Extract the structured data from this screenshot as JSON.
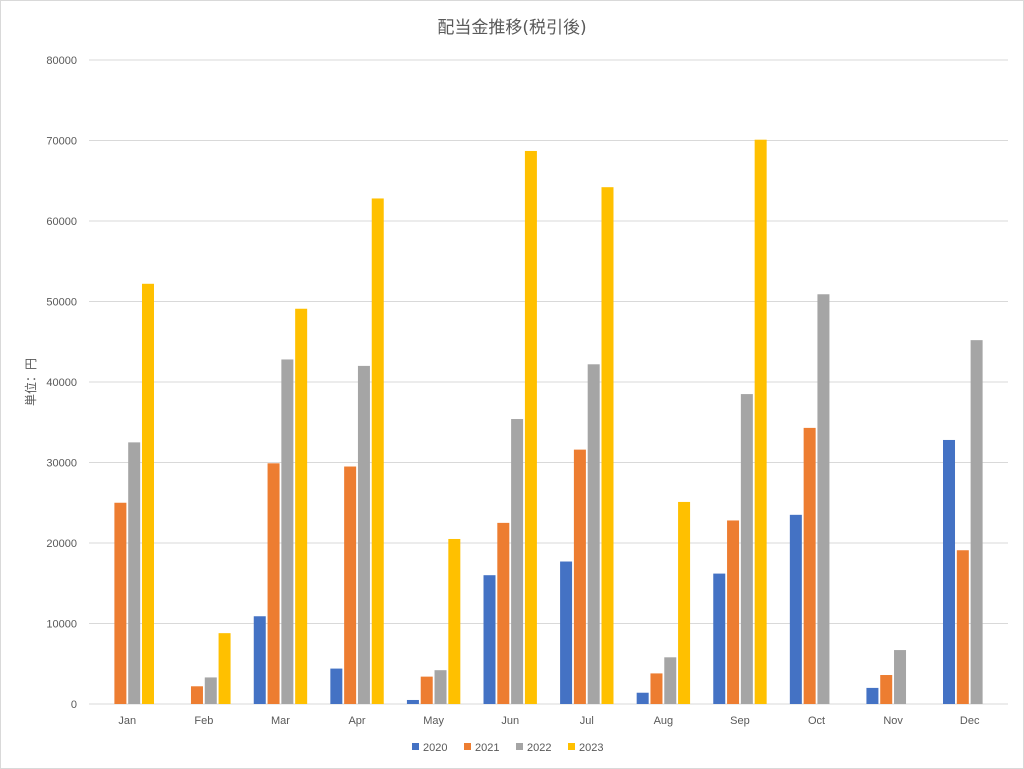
{
  "chart_data": {
    "type": "bar",
    "title": "配当金推移(税引後)",
    "ylabel": "単位：円",
    "xlabel": "",
    "ylim": [
      0,
      80000
    ],
    "yticks": [
      0,
      10000,
      20000,
      30000,
      40000,
      50000,
      60000,
      70000,
      80000
    ],
    "grid": true,
    "legend_position": "bottom",
    "categories": [
      "Jan",
      "Feb",
      "Mar",
      "Apr",
      "May",
      "Jun",
      "Jul",
      "Aug",
      "Sep",
      "Oct",
      "Nov",
      "Dec"
    ],
    "series": [
      {
        "name": "2020",
        "color": "#4472c4",
        "values": [
          0,
          0,
          10900,
          4400,
          500,
          16000,
          17700,
          1400,
          16200,
          23500,
          2000,
          32800
        ]
      },
      {
        "name": "2021",
        "color": "#ed7d31",
        "values": [
          25000,
          2200,
          29900,
          29500,
          3400,
          22500,
          31600,
          3800,
          22800,
          34300,
          3600,
          19100
        ]
      },
      {
        "name": "2022",
        "color": "#a5a5a5",
        "values": [
          32500,
          3300,
          42800,
          42000,
          4200,
          35400,
          42200,
          5800,
          38500,
          50900,
          6700,
          45200
        ]
      },
      {
        "name": "2023",
        "color": "#ffc000",
        "values": [
          52200,
          8800,
          49100,
          62800,
          20500,
          68700,
          64200,
          25100,
          70100,
          0,
          0,
          0
        ]
      }
    ]
  }
}
